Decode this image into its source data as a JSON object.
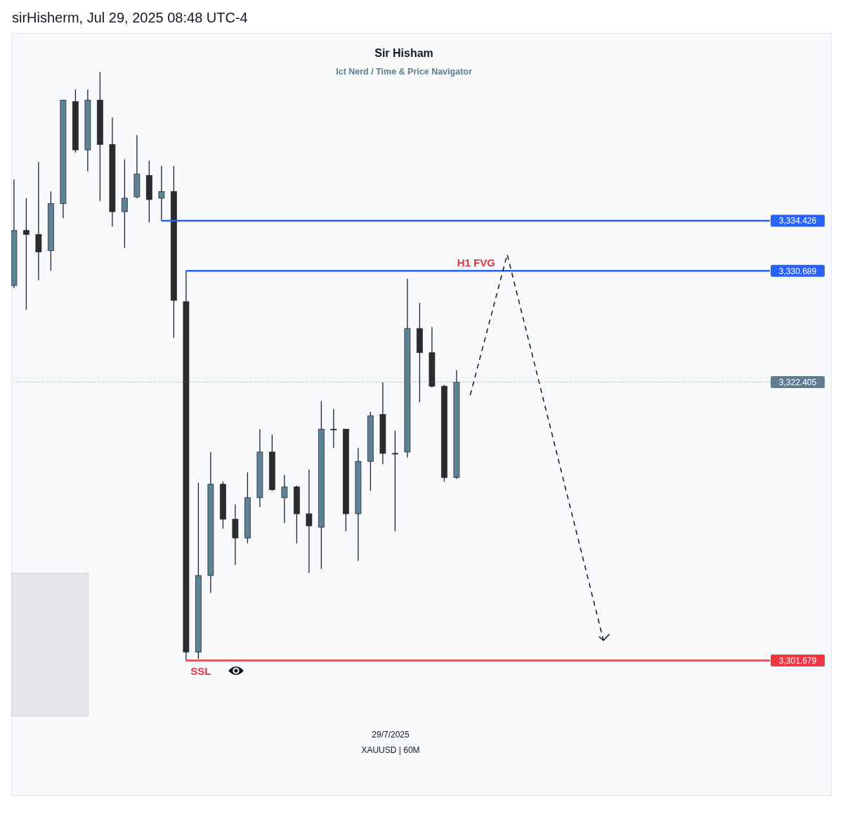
{
  "chart_data": {
    "type": "candlestick",
    "title": "Sir Hisham",
    "subtitle": "Ict Nerd / Time & Price Navigator",
    "categories": [
      null,
      null,
      null,
      null,
      null,
      null,
      null,
      null,
      null,
      null,
      null,
      null,
      null,
      null,
      null,
      null,
      null,
      null,
      null,
      null,
      null,
      null,
      null,
      null,
      null,
      null,
      null,
      null,
      null,
      null,
      null,
      null,
      null,
      null,
      null,
      null,
      null,
      null,
      null,
      null,
      null,
      null,
      null,
      null,
      null,
      null,
      null,
      null,
      null,
      null,
      null,
      null,
      null,
      null,
      null,
      null,
      null,
      null,
      null,
      null,
      null,
      null
    ],
    "ohlc": [
      [
        3329.6,
        3337.5,
        3329.4,
        3333.7
      ],
      [
        3333.7,
        3336.1,
        3327.8,
        3333.4
      ],
      [
        3333.4,
        3338.8,
        3330.0,
        3332.1
      ],
      [
        3332.2,
        3336.6,
        3330.7,
        3335.7
      ],
      [
        3335.7,
        3343.4,
        3334.6,
        3343.4
      ],
      [
        3343.3,
        3344.2,
        3339.5,
        3339.7
      ],
      [
        3339.7,
        3344.2,
        3338.1,
        3343.4
      ],
      [
        3343.4,
        3345.5,
        3335.9,
        3340.1
      ],
      [
        3340.1,
        3342.1,
        3334.0,
        3335.1
      ],
      [
        3335.1,
        3339.0,
        3332.4,
        3336.1
      ],
      [
        3336.2,
        3340.8,
        3336.1,
        3337.9
      ],
      [
        3337.8,
        3338.9,
        3334.3,
        3336.0
      ],
      [
        3336.1,
        3338.5,
        3334.426,
        3336.6
      ],
      [
        3336.6,
        3338.5,
        3325.7,
        3328.5
      ],
      [
        3328.4,
        3330.689,
        3301.679,
        3302.3
      ],
      [
        3302.3,
        3314.9,
        3301.8,
        3308.0
      ],
      [
        3308.0,
        3317.2,
        3306.7,
        3314.8
      ],
      [
        3314.8,
        3315.0,
        3311.5,
        3312.2
      ],
      [
        3312.2,
        3313.3,
        3308.8,
        3310.8
      ],
      [
        3310.8,
        3315.7,
        3310.4,
        3313.8
      ],
      [
        3313.8,
        3318.9,
        3313.1,
        3317.2
      ],
      [
        3317.2,
        3318.5,
        3314.3,
        3314.4
      ],
      [
        3313.8,
        3315.5,
        3311.9,
        3314.6
      ],
      [
        3314.6,
        3314.7,
        3310.4,
        3312.6
      ],
      [
        3312.6,
        3315.9,
        3308.2,
        3311.7
      ],
      [
        3311.6,
        3321.0,
        3308.5,
        3318.9
      ],
      [
        3318.9,
        3320.4,
        3317.5,
        3318.9
      ],
      [
        3318.9,
        3318.9,
        3311.3,
        3312.6
      ],
      [
        3312.6,
        3317.5,
        3309.1,
        3316.5
      ],
      [
        3316.5,
        3320.2,
        3314.3,
        3319.9
      ],
      [
        3320.0,
        3322.4,
        3316.3,
        3317.1
      ],
      [
        3317.1,
        3318.8,
        3311.3,
        3317.1
      ],
      [
        3317.2,
        3330.1,
        3316.8,
        3326.4
      ],
      [
        3326.4,
        3328.3,
        3320.9,
        3324.6
      ],
      [
        3324.6,
        3326.5,
        3322.0,
        3322.1
      ],
      [
        3322.1,
        3322.2,
        3315.0,
        3315.3
      ],
      [
        3315.3,
        3323.3,
        3315.2,
        3322.405
      ],
      null,
      null,
      null,
      null,
      null,
      null,
      null,
      null,
      null,
      null,
      null,
      null,
      null,
      null,
      null,
      null,
      null,
      null,
      null,
      null,
      null,
      null,
      null,
      null,
      null
    ],
    "colors": [
      "#5f8396",
      "#2b2b2b",
      "#2b2b2b",
      "#5f8396",
      "#5f8396",
      "#2b2b2b",
      "#5f8396",
      "#2b2b2b",
      "#2b2b2b",
      "#5f8396",
      "#5f8396",
      "#2b2b2b",
      "#5f8396",
      "#2b2b2b",
      "#2b2b2b",
      "#5f8396",
      "#5f8396",
      "#2b2b2b",
      "#2b2b2b",
      "#5f8396",
      "#5f8396",
      "#2b2b2b",
      "#5f8396",
      "#2b2b2b",
      "#2b2b2b",
      "#5f8396",
      "#2b2b2b",
      "#2b2b2b",
      "#5f8396",
      "#5f8396",
      "#2b2b2b",
      "#2b2b2b",
      "#5f8396",
      "#2b2b2b",
      "#2b2b2b",
      "#2b2b2b",
      "#5f8396",
      null,
      null,
      null,
      null,
      null,
      null,
      null,
      null,
      null,
      null,
      null,
      null,
      null,
      null,
      null,
      null,
      null,
      null,
      null,
      null,
      null,
      null,
      null,
      null,
      null
    ],
    "ylim": [
      3291.6,
      3348.4
    ],
    "tick_labels": false,
    "ref_lines": [
      {
        "axis": "y",
        "value": 3334.426,
        "label": "3,334.426",
        "color": "#2962ff"
      },
      {
        "axis": "y",
        "value": 3330.689,
        "label": "3,330.689",
        "color": "#2962ff"
      },
      {
        "axis": "y",
        "value": 3322.405,
        "label": "3,322.405",
        "color": "#5f7d8e",
        "line_style": "dotted"
      },
      {
        "axis": "y",
        "value": 3301.679,
        "label": "3,301.679",
        "color": "#f23645"
      }
    ],
    "annotations": [
      "sirHisherm, Jul 29, 2025 08:48 UTC-4",
      {
        "text": "H1 FVG",
        "y": 3330.689
      },
      {
        "text": "SSL",
        "y": 3301.679
      },
      "29/7/2025",
      "XAUUSD | 60M"
    ]
  }
}
